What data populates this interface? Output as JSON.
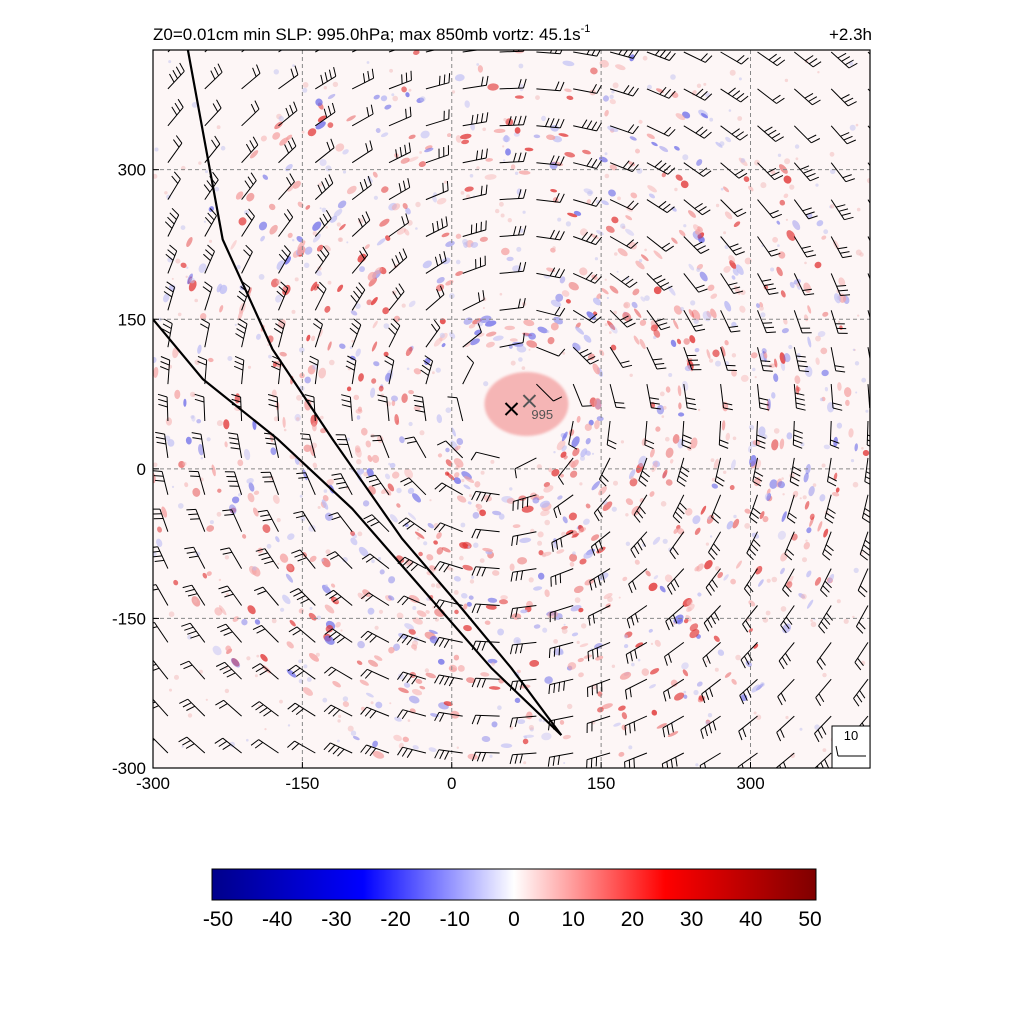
{
  "chart_data": {
    "type": "heatmap",
    "title": {
      "main": "Z0=0.01cm  min SLP: 995.0hPa; max 850mb vortz:  45.1s",
      "superscript": "-1",
      "time": "+2.3h"
    },
    "xlabel": "",
    "ylabel": "",
    "xlim": [
      -300,
      420
    ],
    "ylim": [
      -300,
      420
    ],
    "xticks": [
      -300,
      -150,
      0,
      150,
      300
    ],
    "yticks": [
      -300,
      -150,
      0,
      150,
      300
    ],
    "grid": true,
    "grid_style": "dashed",
    "colormap": [
      "#00008b",
      "#0000ff",
      "#ffffff",
      "#ff0000",
      "#7f0000"
    ],
    "colorbar": {
      "min": -50,
      "max": 50,
      "ticks": [
        -50,
        -40,
        -30,
        -20,
        -10,
        0,
        10,
        20,
        30,
        40,
        50
      ]
    },
    "storm_center": {
      "x": 60,
      "y": 60,
      "marker": "x"
    },
    "slp_min": {
      "x": 78,
      "y": 68,
      "label": "995",
      "marker": "x"
    },
    "coast_lines": [
      [
        [
          -265,
          420
        ],
        [
          -230,
          230
        ],
        [
          -180,
          120
        ],
        [
          -120,
          30
        ],
        [
          -50,
          -70
        ],
        [
          10,
          -140
        ],
        [
          60,
          -200
        ],
        [
          110,
          -267
        ]
      ],
      [
        [
          -300,
          150
        ],
        [
          -250,
          90
        ],
        [
          -175,
          30
        ],
        [
          -100,
          -40
        ],
        [
          -30,
          -120
        ],
        [
          40,
          -200
        ],
        [
          110,
          -267
        ]
      ]
    ],
    "barb_key": {
      "label": "10"
    },
    "barb_grid": {
      "start": -285,
      "step": 37,
      "count": 20
    },
    "vortex_rings": [
      {
        "r": 90,
        "amp": 16
      },
      {
        "r": 155,
        "amp": 15
      },
      {
        "r": 235,
        "amp": 11
      },
      {
        "r": 320,
        "amp": 8
      }
    ]
  }
}
